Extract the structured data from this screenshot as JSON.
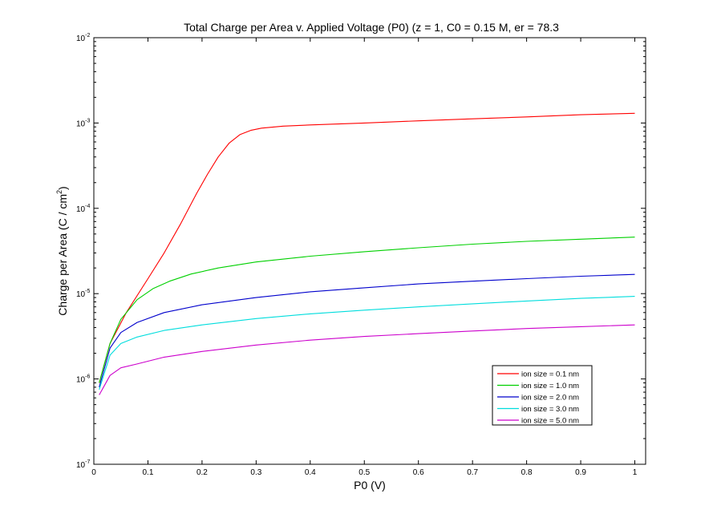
{
  "chart_data": {
    "type": "line",
    "title": "Total Charge per Area v. Applied Voltage (P0) (z = 1, C0 = 0.15 M, er = 78.3",
    "xlabel": "P0 (V)",
    "ylabel_prefix": "Charge per Area (C / cm",
    "ylabel_sup": "2",
    "ylabel_suffix": ")",
    "xlim": [
      0,
      1.02
    ],
    "ylim": [
      1e-07,
      0.01
    ],
    "yscale": "log",
    "grid": false,
    "legend_position": "lower-right",
    "x_ticks": [
      "0",
      "0.1",
      "0.2",
      "0.3",
      "0.4",
      "0.5",
      "0.6",
      "0.7",
      "0.8",
      "0.9",
      "1"
    ],
    "y_ticks": [
      {
        "base": "10",
        "exp": "-2"
      },
      {
        "base": "10",
        "exp": "-3"
      },
      {
        "base": "10",
        "exp": "-4"
      },
      {
        "base": "10",
        "exp": "-5"
      },
      {
        "base": "10",
        "exp": "-6"
      },
      {
        "base": "10",
        "exp": "-7"
      }
    ],
    "series": [
      {
        "name": "ion size = 0.1 nm",
        "color": "#ff0000",
        "x": [
          0.01,
          0.03,
          0.06,
          0.1,
          0.13,
          0.16,
          0.19,
          0.21,
          0.23,
          0.25,
          0.27,
          0.29,
          0.31,
          0.35,
          0.4,
          0.5,
          0.6,
          0.7,
          0.8,
          0.9,
          1.0
        ],
        "y": [
          9e-07,
          2.6e-06,
          6e-06,
          1.5e-05,
          3e-05,
          6.5e-05,
          0.00015,
          0.00025,
          0.0004,
          0.00058,
          0.00073,
          0.00082,
          0.00087,
          0.00092,
          0.00095,
          0.001,
          0.00106,
          0.00112,
          0.00118,
          0.00125,
          0.0013
        ]
      },
      {
        "name": "ion size = 1.0 nm",
        "color": "#00d000",
        "x": [
          0.01,
          0.03,
          0.05,
          0.08,
          0.11,
          0.14,
          0.18,
          0.23,
          0.3,
          0.4,
          0.5,
          0.6,
          0.7,
          0.8,
          0.9,
          1.0
        ],
        "y": [
          9e-07,
          2.6e-06,
          5e-06,
          8.5e-06,
          1.15e-05,
          1.4e-05,
          1.7e-05,
          2e-05,
          2.35e-05,
          2.75e-05,
          3.1e-05,
          3.45e-05,
          3.8e-05,
          4.1e-05,
          4.35e-05,
          4.6e-05
        ]
      },
      {
        "name": "ion size = 2.0 nm",
        "color": "#0000cc",
        "x": [
          0.01,
          0.03,
          0.05,
          0.08,
          0.13,
          0.2,
          0.3,
          0.4,
          0.5,
          0.6,
          0.7,
          0.8,
          0.9,
          1.0
        ],
        "y": [
          8e-07,
          2.3e-06,
          3.5e-06,
          4.6e-06,
          6e-06,
          7.4e-06,
          9e-06,
          1.05e-05,
          1.17e-05,
          1.3e-05,
          1.4e-05,
          1.5e-05,
          1.6e-05,
          1.68e-05
        ]
      },
      {
        "name": "ion size = 3.0 nm",
        "color": "#00dddd",
        "x": [
          0.01,
          0.03,
          0.05,
          0.08,
          0.13,
          0.2,
          0.3,
          0.4,
          0.5,
          0.6,
          0.7,
          0.8,
          0.9,
          1.0
        ],
        "y": [
          7.5e-07,
          1.9e-06,
          2.6e-06,
          3.1e-06,
          3.7e-06,
          4.3e-06,
          5.1e-06,
          5.8e-06,
          6.4e-06,
          7e-06,
          7.6e-06,
          8.2e-06,
          8.8e-06,
          9.3e-06
        ]
      },
      {
        "name": "ion size = 5.0 nm",
        "color": "#cc00cc",
        "x": [
          0.01,
          0.03,
          0.05,
          0.08,
          0.13,
          0.2,
          0.3,
          0.4,
          0.5,
          0.6,
          0.7,
          0.8,
          0.9,
          1.0
        ],
        "y": [
          6.5e-07,
          1.1e-06,
          1.35e-06,
          1.5e-06,
          1.8e-06,
          2.1e-06,
          2.5e-06,
          2.85e-06,
          3.15e-06,
          3.4e-06,
          3.65e-06,
          3.9e-06,
          4.1e-06,
          4.3e-06
        ]
      }
    ]
  }
}
